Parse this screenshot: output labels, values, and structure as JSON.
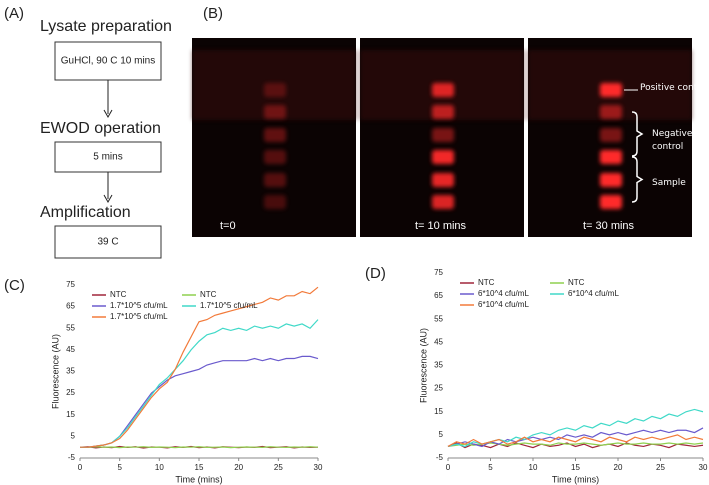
{
  "labels": {
    "a": "(A)",
    "b": "(B)"
  },
  "flowchart": {
    "steps": [
      {
        "title": "Lysate preparation",
        "box": "GuHCl, 90 C 10 mins"
      },
      {
        "title": "EWOD operation",
        "box": "5 mins"
      },
      {
        "title": "Amplification",
        "box": "39 C"
      }
    ]
  },
  "images": {
    "frames": [
      "t=0",
      "t= 10 mins",
      "t= 30 mins"
    ],
    "annotations": [
      "Positive control",
      "Negative control",
      "Sample"
    ]
  },
  "chart_data": [
    {
      "type": "line",
      "label": "(C)",
      "xlabel": "Time (mins)",
      "ylabel": "Fluorescence (AU)",
      "xlim": [
        0,
        30
      ],
      "xticks": [
        0,
        5,
        10,
        15,
        20,
        25,
        30
      ],
      "ylim": [
        -5,
        75
      ],
      "yticks": [
        -5,
        5,
        15,
        25,
        35,
        45,
        55,
        65,
        75
      ],
      "x": [
        0,
        1,
        2,
        3,
        4,
        5,
        6,
        7,
        8,
        9,
        10,
        11,
        12,
        13,
        14,
        15,
        16,
        17,
        18,
        19,
        20,
        21,
        22,
        23,
        24,
        25,
        26,
        27,
        28,
        29,
        30
      ],
      "series": [
        {
          "name": "NTC",
          "color": "#a0263a",
          "values": [
            0,
            0.2,
            -0.3,
            0.1,
            -0.2,
            0.3,
            -0.1,
            0.2,
            -0.4,
            0.1,
            0,
            -0.3,
            0.2,
            -0.1,
            0.3,
            -0.2,
            0.1,
            -0.3,
            0.2,
            0,
            -0.2,
            0.1,
            -0.1,
            0.3,
            -0.2,
            0,
            0.2,
            -0.3,
            0.1,
            -0.1,
            0
          ]
        },
        {
          "name": "NTC",
          "color": "#8fd14f",
          "values": [
            0,
            -0.1,
            0.2,
            0,
            0.1,
            -0.2,
            0.1,
            0,
            0.2,
            -0.1,
            0.1,
            0,
            -0.2,
            0.1,
            0,
            0.2,
            -0.1,
            0,
            0.1,
            -0.2,
            0,
            0.1,
            0,
            -0.1,
            0.2,
            0,
            -0.1,
            0.1,
            0,
            0.2,
            0
          ]
        },
        {
          "name": "1.7*10^5 cfu/mL",
          "color": "#6a5acd",
          "values": [
            0,
            0,
            0.5,
            1,
            2,
            5,
            10,
            15,
            20,
            25,
            28,
            31,
            33,
            34,
            35,
            36,
            38,
            39,
            40,
            40,
            40,
            40,
            41,
            40,
            41,
            40,
            41,
            41,
            42,
            42,
            41
          ]
        },
        {
          "name": "1.7*10^5 cfu/mL",
          "color": "#40d9c8",
          "values": [
            0,
            0,
            0.5,
            1,
            2,
            5,
            9,
            14,
            19,
            24,
            29,
            32,
            36,
            40,
            45,
            49,
            52,
            53,
            55,
            54,
            55,
            54,
            56,
            55,
            56,
            55,
            57,
            56,
            57,
            55,
            59
          ]
        },
        {
          "name": "1.7*10^5 cfu/mL",
          "color": "#f27a3a",
          "values": [
            0,
            0,
            0.5,
            1,
            2,
            4,
            8,
            13,
            18,
            23,
            27,
            30,
            36,
            44,
            51,
            58,
            59,
            61,
            62,
            63,
            64,
            65,
            66,
            67,
            69,
            68,
            70,
            70,
            72,
            71,
            74
          ]
        }
      ]
    },
    {
      "type": "line",
      "label": "(D)",
      "xlabel": "Time (mins)",
      "ylabel": "Fluorescence (AU)",
      "xlim": [
        0,
        30
      ],
      "xticks": [
        0,
        5,
        10,
        15,
        20,
        25,
        30
      ],
      "ylim": [
        -5,
        75
      ],
      "yticks": [
        -5,
        5,
        15,
        25,
        35,
        45,
        55,
        65,
        75
      ],
      "x": [
        0,
        1,
        2,
        3,
        4,
        5,
        6,
        7,
        8,
        9,
        10,
        11,
        12,
        13,
        14,
        15,
        16,
        17,
        18,
        19,
        20,
        21,
        22,
        23,
        24,
        25,
        26,
        27,
        28,
        29,
        30
      ],
      "series": [
        {
          "name": "NTC",
          "color": "#a0263a",
          "values": [
            0,
            1.5,
            -0.5,
            1,
            0.5,
            -0.5,
            1,
            0,
            1.5,
            0.5,
            -0.5,
            1,
            0,
            0.5,
            1.5,
            0,
            1,
            -0.5,
            0.5,
            1,
            0,
            1.5,
            0.5,
            0,
            1,
            0.5,
            -0.5,
            1,
            0.5,
            0,
            0.5
          ]
        },
        {
          "name": "NTC",
          "color": "#8fd14f",
          "values": [
            0,
            0.5,
            1,
            0.5,
            1,
            1.5,
            1,
            0.5,
            1,
            1.5,
            1,
            1,
            0.5,
            1.5,
            1,
            1,
            1.5,
            1,
            0.5,
            1,
            1.5,
            1,
            1,
            1.5,
            1,
            1,
            1.5,
            1,
            1.5,
            1,
            1.5
          ]
        },
        {
          "name": "6*10^4 cfu/mL",
          "color": "#6a5acd",
          "values": [
            0,
            1,
            2,
            1,
            0,
            2,
            1,
            3,
            2,
            3,
            4,
            3,
            4,
            3,
            5,
            4,
            5,
            4,
            6,
            5,
            6,
            5,
            6,
            7,
            6,
            7,
            6,
            7,
            7,
            6,
            8
          ]
        },
        {
          "name": "6*10^4 cfu/mL",
          "color": "#40d9c8",
          "values": [
            0,
            1,
            0,
            2,
            1,
            2,
            3,
            2,
            4,
            3,
            5,
            6,
            5,
            7,
            8,
            7,
            9,
            8,
            10,
            9,
            11,
            10,
            12,
            11,
            13,
            12,
            14,
            13,
            15,
            16,
            15
          ]
        },
        {
          "name": "6*10^4 cfu/mL",
          "color": "#f27a3a",
          "values": [
            0,
            2,
            1,
            3,
            1,
            2,
            3,
            1,
            2,
            4,
            2,
            3,
            2,
            4,
            3,
            2,
            4,
            3,
            2,
            4,
            3,
            2,
            4,
            3,
            4,
            3,
            4,
            5,
            3,
            4,
            3
          ]
        }
      ]
    }
  ]
}
